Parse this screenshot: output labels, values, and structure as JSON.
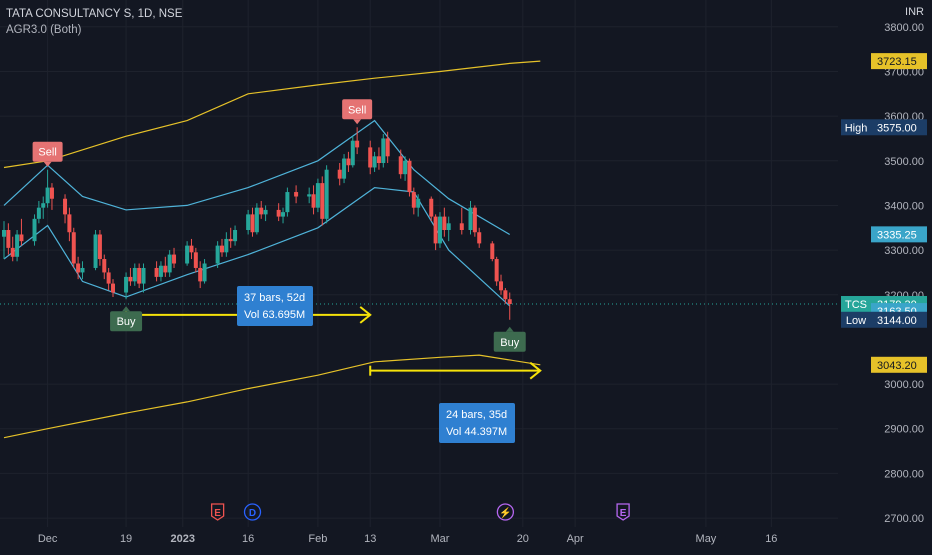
{
  "header": {
    "title": "TATA CONSULTANCY S, 1D, NSE",
    "indicator": "AGR3.0 (Both)",
    "currency": "INR"
  },
  "colors": {
    "background": "#131722",
    "up": "#26a69a",
    "down": "#ef5350",
    "inner_band": "#4fb3d9",
    "outer_band": "#e6c229",
    "measure_arrow": "#f5e20a",
    "measure_box": "#2f80d1",
    "sell_label": "#e57373",
    "buy_label": "#3d6b4f"
  },
  "chart_data": {
    "type": "candlestick",
    "y_axis": {
      "min": 2680,
      "max": 3860,
      "ticks": [
        "3800.00",
        "3700.00",
        "3600.00",
        "3500.00",
        "3400.00",
        "3300.00",
        "3200.00",
        "3000.00",
        "2900.00",
        "2800.00",
        "2700.00"
      ]
    },
    "x_axis": {
      "labels": [
        "Dec",
        "19",
        "2023",
        "16",
        "Feb",
        "13",
        "Mar",
        "20",
        "Apr",
        "May",
        "16"
      ]
    },
    "candles": [
      {
        "date": "2022-11-21",
        "o": 3330,
        "h": 3365,
        "l": 3280,
        "c": 3345
      },
      {
        "date": "2022-11-22",
        "o": 3345,
        "h": 3360,
        "l": 3290,
        "c": 3305
      },
      {
        "date": "2022-11-23",
        "o": 3305,
        "h": 3330,
        "l": 3275,
        "c": 3285
      },
      {
        "date": "2022-11-24",
        "o": 3285,
        "h": 3345,
        "l": 3275,
        "c": 3335
      },
      {
        "date": "2022-11-25",
        "o": 3335,
        "h": 3370,
        "l": 3310,
        "c": 3320
      },
      {
        "date": "2022-11-28",
        "o": 3320,
        "h": 3380,
        "l": 3310,
        "c": 3370
      },
      {
        "date": "2022-11-29",
        "o": 3370,
        "h": 3410,
        "l": 3360,
        "c": 3395
      },
      {
        "date": "2022-11-30",
        "o": 3395,
        "h": 3420,
        "l": 3370,
        "c": 3405
      },
      {
        "date": "2022-12-01",
        "o": 3405,
        "h": 3480,
        "l": 3395,
        "c": 3440
      },
      {
        "date": "2022-12-02",
        "o": 3440,
        "h": 3450,
        "l": 3390,
        "c": 3415
      },
      {
        "date": "2022-12-05",
        "o": 3415,
        "h": 3425,
        "l": 3360,
        "c": 3380
      },
      {
        "date": "2022-12-06",
        "o": 3380,
        "h": 3395,
        "l": 3320,
        "c": 3340
      },
      {
        "date": "2022-12-07",
        "o": 3340,
        "h": 3350,
        "l": 3260,
        "c": 3270
      },
      {
        "date": "2022-12-08",
        "o": 3270,
        "h": 3285,
        "l": 3235,
        "c": 3250
      },
      {
        "date": "2022-12-09",
        "o": 3250,
        "h": 3275,
        "l": 3235,
        "c": 3260
      },
      {
        "date": "2022-12-12",
        "o": 3260,
        "h": 3345,
        "l": 3255,
        "c": 3335
      },
      {
        "date": "2022-12-13",
        "o": 3335,
        "h": 3345,
        "l": 3265,
        "c": 3280
      },
      {
        "date": "2022-12-14",
        "o": 3280,
        "h": 3290,
        "l": 3235,
        "c": 3250
      },
      {
        "date": "2022-12-15",
        "o": 3250,
        "h": 3260,
        "l": 3210,
        "c": 3225
      },
      {
        "date": "2022-12-16",
        "o": 3225,
        "h": 3235,
        "l": 3195,
        "c": 3205
      },
      {
        "date": "2022-12-19",
        "o": 3205,
        "h": 3250,
        "l": 3190,
        "c": 3240
      },
      {
        "date": "2022-12-20",
        "o": 3240,
        "h": 3260,
        "l": 3220,
        "c": 3230
      },
      {
        "date": "2022-12-21",
        "o": 3230,
        "h": 3270,
        "l": 3220,
        "c": 3260
      },
      {
        "date": "2022-12-22",
        "o": 3260,
        "h": 3270,
        "l": 3215,
        "c": 3225
      },
      {
        "date": "2022-12-23",
        "o": 3225,
        "h": 3270,
        "l": 3205,
        "c": 3260
      },
      {
        "date": "2022-12-26",
        "o": 3260,
        "h": 3275,
        "l": 3230,
        "c": 3240
      },
      {
        "date": "2022-12-27",
        "o": 3240,
        "h": 3275,
        "l": 3230,
        "c": 3265
      },
      {
        "date": "2022-12-28",
        "o": 3265,
        "h": 3285,
        "l": 3240,
        "c": 3250
      },
      {
        "date": "2022-12-29",
        "o": 3250,
        "h": 3300,
        "l": 3240,
        "c": 3290
      },
      {
        "date": "2022-12-30",
        "o": 3290,
        "h": 3305,
        "l": 3260,
        "c": 3270
      },
      {
        "date": "2023-01-02",
        "o": 3270,
        "h": 3320,
        "l": 3265,
        "c": 3310
      },
      {
        "date": "2023-01-03",
        "o": 3310,
        "h": 3325,
        "l": 3280,
        "c": 3295
      },
      {
        "date": "2023-01-04",
        "o": 3295,
        "h": 3305,
        "l": 3250,
        "c": 3260
      },
      {
        "date": "2023-01-05",
        "o": 3260,
        "h": 3275,
        "l": 3215,
        "c": 3230
      },
      {
        "date": "2023-01-06",
        "o": 3230,
        "h": 3280,
        "l": 3225,
        "c": 3270
      },
      {
        "date": "2023-01-09",
        "o": 3270,
        "h": 3320,
        "l": 3260,
        "c": 3310
      },
      {
        "date": "2023-01-10",
        "o": 3310,
        "h": 3325,
        "l": 3285,
        "c": 3295
      },
      {
        "date": "2023-01-11",
        "o": 3295,
        "h": 3340,
        "l": 3285,
        "c": 3325
      },
      {
        "date": "2023-01-12",
        "o": 3325,
        "h": 3350,
        "l": 3305,
        "c": 3320
      },
      {
        "date": "2023-01-13",
        "o": 3320,
        "h": 3355,
        "l": 3310,
        "c": 3345
      },
      {
        "date": "2023-01-16",
        "o": 3345,
        "h": 3390,
        "l": 3335,
        "c": 3380
      },
      {
        "date": "2023-01-17",
        "o": 3380,
        "h": 3395,
        "l": 3330,
        "c": 3340
      },
      {
        "date": "2023-01-18",
        "o": 3340,
        "h": 3405,
        "l": 3335,
        "c": 3395
      },
      {
        "date": "2023-01-19",
        "o": 3395,
        "h": 3410,
        "l": 3370,
        "c": 3380
      },
      {
        "date": "2023-01-20",
        "o": 3380,
        "h": 3400,
        "l": 3365,
        "c": 3390
      },
      {
        "date": "2023-01-23",
        "o": 3390,
        "h": 3405,
        "l": 3365,
        "c": 3375
      },
      {
        "date": "2023-01-24",
        "o": 3375,
        "h": 3395,
        "l": 3360,
        "c": 3385
      },
      {
        "date": "2023-01-25",
        "o": 3385,
        "h": 3440,
        "l": 3375,
        "c": 3430
      },
      {
        "date": "2023-01-27",
        "o": 3430,
        "h": 3445,
        "l": 3405,
        "c": 3420
      },
      {
        "date": "2023-01-30",
        "o": 3420,
        "h": 3440,
        "l": 3405,
        "c": 3425
      },
      {
        "date": "2023-01-31",
        "o": 3425,
        "h": 3445,
        "l": 3380,
        "c": 3395
      },
      {
        "date": "2023-02-01",
        "o": 3395,
        "h": 3460,
        "l": 3385,
        "c": 3450
      },
      {
        "date": "2023-02-02",
        "o": 3450,
        "h": 3465,
        "l": 3355,
        "c": 3370
      },
      {
        "date": "2023-02-03",
        "o": 3370,
        "h": 3490,
        "l": 3360,
        "c": 3480
      },
      {
        "date": "2023-02-06",
        "o": 3480,
        "h": 3495,
        "l": 3445,
        "c": 3460
      },
      {
        "date": "2023-02-07",
        "o": 3460,
        "h": 3515,
        "l": 3450,
        "c": 3505
      },
      {
        "date": "2023-02-08",
        "o": 3505,
        "h": 3520,
        "l": 3475,
        "c": 3490
      },
      {
        "date": "2023-02-09",
        "o": 3490,
        "h": 3555,
        "l": 3485,
        "c": 3545
      },
      {
        "date": "2023-02-10",
        "o": 3545,
        "h": 3575,
        "l": 3515,
        "c": 3530
      },
      {
        "date": "2023-02-13",
        "o": 3530,
        "h": 3545,
        "l": 3470,
        "c": 3485
      },
      {
        "date": "2023-02-14",
        "o": 3485,
        "h": 3520,
        "l": 3475,
        "c": 3510
      },
      {
        "date": "2023-02-15",
        "o": 3510,
        "h": 3530,
        "l": 3480,
        "c": 3495
      },
      {
        "date": "2023-02-16",
        "o": 3495,
        "h": 3560,
        "l": 3485,
        "c": 3550
      },
      {
        "date": "2023-02-17",
        "o": 3550,
        "h": 3565,
        "l": 3495,
        "c": 3510
      },
      {
        "date": "2023-02-20",
        "o": 3510,
        "h": 3525,
        "l": 3460,
        "c": 3470
      },
      {
        "date": "2023-02-21",
        "o": 3470,
        "h": 3510,
        "l": 3455,
        "c": 3500
      },
      {
        "date": "2023-02-22",
        "o": 3500,
        "h": 3505,
        "l": 3420,
        "c": 3430
      },
      {
        "date": "2023-02-23",
        "o": 3430,
        "h": 3440,
        "l": 3380,
        "c": 3395
      },
      {
        "date": "2023-02-24",
        "o": 3395,
        "h": 3425,
        "l": 3375,
        "c": 3415
      },
      {
        "date": "2023-02-27",
        "o": 3415,
        "h": 3420,
        "l": 3365,
        "c": 3375
      },
      {
        "date": "2023-02-28",
        "o": 3375,
        "h": 3380,
        "l": 3300,
        "c": 3315
      },
      {
        "date": "2023-03-01",
        "o": 3315,
        "h": 3385,
        "l": 3305,
        "c": 3375
      },
      {
        "date": "2023-03-02",
        "o": 3375,
        "h": 3395,
        "l": 3330,
        "c": 3345
      },
      {
        "date": "2023-03-03",
        "o": 3345,
        "h": 3375,
        "l": 3320,
        "c": 3360
      },
      {
        "date": "2023-03-06",
        "o": 3360,
        "h": 3395,
        "l": 3335,
        "c": 3345
      },
      {
        "date": "2023-03-08",
        "o": 3345,
        "h": 3410,
        "l": 3335,
        "c": 3395
      },
      {
        "date": "2023-03-09",
        "o": 3395,
        "h": 3400,
        "l": 3330,
        "c": 3340
      },
      {
        "date": "2023-03-10",
        "o": 3340,
        "h": 3350,
        "l": 3305,
        "c": 3315
      },
      {
        "date": "2023-03-13",
        "o": 3315,
        "h": 3320,
        "l": 3275,
        "c": 3280
      },
      {
        "date": "2023-03-14",
        "o": 3280,
        "h": 3285,
        "l": 3220,
        "c": 3230
      },
      {
        "date": "2023-03-15",
        "o": 3230,
        "h": 3245,
        "l": 3200,
        "c": 3210
      },
      {
        "date": "2023-03-16",
        "o": 3210,
        "h": 3215,
        "l": 3180,
        "c": 3190
      },
      {
        "date": "2023-03-17",
        "o": 3190,
        "h": 3205,
        "l": 3144,
        "c": 3179.3
      }
    ],
    "inner_band": {
      "upper_dates": [
        "2022-11-21",
        "2022-12-01",
        "2022-12-09",
        "2022-12-19",
        "2023-01-02",
        "2023-01-16",
        "2023-02-01",
        "2023-02-14",
        "2023-02-23",
        "2023-03-03",
        "2023-03-17"
      ],
      "upper": [
        3400,
        3490,
        3420,
        3390,
        3400,
        3440,
        3500,
        3590,
        3480,
        3415,
        3335
      ],
      "lower_dates": [
        "2022-11-21",
        "2022-12-01",
        "2022-12-09",
        "2022-12-19",
        "2023-01-02",
        "2023-01-16",
        "2023-02-01",
        "2023-02-14",
        "2023-02-23",
        "2023-03-03",
        "2023-03-17"
      ],
      "lower": [
        3280,
        3355,
        3230,
        3195,
        3245,
        3290,
        3350,
        3440,
        3430,
        3300,
        3175
      ]
    },
    "outer_band": {
      "upper_dates": [
        "2022-11-21",
        "2022-12-01",
        "2022-12-19",
        "2023-01-02",
        "2023-01-16",
        "2023-02-01",
        "2023-02-14",
        "2023-03-01",
        "2023-03-17",
        "2023-03-24"
      ],
      "upper": [
        3485,
        3500,
        3555,
        3590,
        3650,
        3670,
        3685,
        3700,
        3718,
        3723.15
      ],
      "lower_dates": [
        "2022-11-21",
        "2022-12-01",
        "2022-12-19",
        "2023-01-02",
        "2023-01-16",
        "2023-02-01",
        "2023-02-14",
        "2023-03-01",
        "2023-03-10",
        "2023-03-24"
      ],
      "lower": [
        2880,
        2900,
        2935,
        2960,
        2990,
        3020,
        3050,
        3060,
        3065,
        3043.2
      ]
    },
    "price_labels": [
      {
        "id": "outer-upper-price",
        "value": 3723.15,
        "text": "3723.15",
        "type": "band"
      },
      {
        "id": "high-price",
        "value": 3575.0,
        "tag": "High",
        "text": "3575.00",
        "type": "tagged"
      },
      {
        "id": "inner-upper-price",
        "value": 3335.25,
        "text": "3335.25",
        "type": "inner"
      },
      {
        "id": "last-price",
        "value": 3179.3,
        "tag": "TCS",
        "text": "3179.30",
        "type": "last"
      },
      {
        "id": "inner-lower-price",
        "value": 3163.5,
        "text": "3163.50",
        "type": "inner"
      },
      {
        "id": "low-price",
        "value": 3144.0,
        "tag": "Low",
        "text": "3144.00",
        "type": "tagged"
      },
      {
        "id": "outer-lower-price",
        "value": 3043.2,
        "text": "3043.20",
        "type": "band"
      }
    ],
    "signals": [
      {
        "text": "Sell",
        "date": "2022-12-01",
        "price": 3480,
        "kind": "sell"
      },
      {
        "text": "Sell",
        "date": "2023-02-10",
        "price": 3575,
        "kind": "sell"
      },
      {
        "text": "Buy",
        "date": "2022-12-19",
        "price": 3190,
        "kind": "buy"
      },
      {
        "text": "Buy",
        "date": "2023-03-17",
        "price": 3144,
        "kind": "buy"
      }
    ],
    "measures": [
      {
        "start_date": "2022-12-19",
        "end_date": "2023-02-13",
        "price": 3155,
        "line1": "37 bars, 52d",
        "line2": "Vol 63.695M"
      },
      {
        "start_date": "2023-02-13",
        "end_date": "2023-03-24",
        "price": 3030,
        "line1": "24 bars, 35d",
        "line2": "Vol 44.397M"
      }
    ],
    "events": [
      {
        "letter": "E",
        "shape": "earnings",
        "color": "#ef5350",
        "date": "2023-01-09"
      },
      {
        "letter": "D",
        "shape": "dividend",
        "color": "#2962ff",
        "date": "2023-01-17"
      },
      {
        "letter": "⚡",
        "shape": "split",
        "color": "#b667f1",
        "date": "2023-03-16"
      },
      {
        "letter": "E",
        "shape": "earnings",
        "color": "#b667f1",
        "date": "2023-04-12"
      }
    ]
  }
}
